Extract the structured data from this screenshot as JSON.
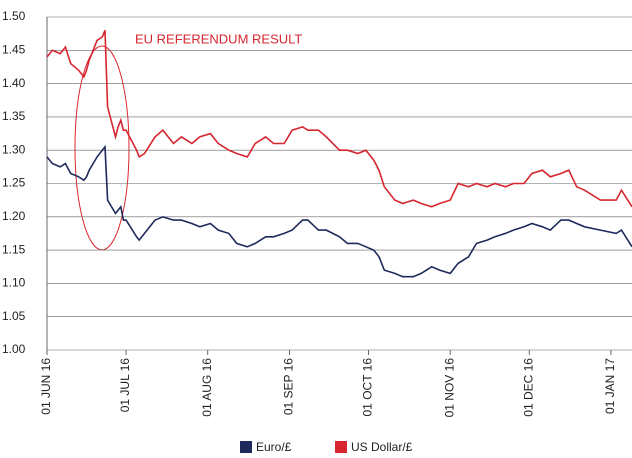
{
  "chart_data": {
    "type": "line",
    "annotation": "EU REFERENDUM RESULT",
    "x": [
      "2016-06-01",
      "2016-06-03",
      "2016-06-06",
      "2016-06-08",
      "2016-06-10",
      "2016-06-13",
      "2016-06-15",
      "2016-06-16",
      "2016-06-17",
      "2016-06-20",
      "2016-06-22",
      "2016-06-23",
      "2016-06-24",
      "2016-06-27",
      "2016-06-28",
      "2016-06-29",
      "2016-06-30",
      "2016-07-01",
      "2016-07-05",
      "2016-07-06",
      "2016-07-08",
      "2016-07-12",
      "2016-07-15",
      "2016-07-19",
      "2016-07-22",
      "2016-07-26",
      "2016-07-29",
      "2016-08-02",
      "2016-08-05",
      "2016-08-09",
      "2016-08-12",
      "2016-08-16",
      "2016-08-19",
      "2016-08-23",
      "2016-08-26",
      "2016-08-30",
      "2016-09-02",
      "2016-09-06",
      "2016-09-08",
      "2016-09-12",
      "2016-09-15",
      "2016-09-20",
      "2016-09-23",
      "2016-09-27",
      "2016-09-30",
      "2016-10-03",
      "2016-10-05",
      "2016-10-07",
      "2016-10-11",
      "2016-10-14",
      "2016-10-18",
      "2016-10-21",
      "2016-10-25",
      "2016-10-28",
      "2016-11-01",
      "2016-11-04",
      "2016-11-08",
      "2016-11-11",
      "2016-11-15",
      "2016-11-18",
      "2016-11-22",
      "2016-11-25",
      "2016-11-29",
      "2016-12-02",
      "2016-12-06",
      "2016-12-09",
      "2016-12-13",
      "2016-12-16",
      "2016-12-19",
      "2016-12-22",
      "2016-12-28",
      "2017-01-03",
      "2017-01-05",
      "2017-01-09"
    ],
    "series": [
      {
        "name": "Euro/£",
        "color": "#1f2a5c",
        "values": [
          1.29,
          1.28,
          1.275,
          1.28,
          1.265,
          1.26,
          1.255,
          1.26,
          1.27,
          1.29,
          1.3,
          1.305,
          1.225,
          1.205,
          1.21,
          1.215,
          1.195,
          1.195,
          1.17,
          1.165,
          1.175,
          1.195,
          1.2,
          1.195,
          1.195,
          1.19,
          1.185,
          1.19,
          1.18,
          1.175,
          1.16,
          1.155,
          1.16,
          1.17,
          1.17,
          1.175,
          1.18,
          1.195,
          1.195,
          1.18,
          1.18,
          1.17,
          1.16,
          1.16,
          1.155,
          1.15,
          1.14,
          1.12,
          1.115,
          1.11,
          1.11,
          1.115,
          1.125,
          1.12,
          1.115,
          1.13,
          1.14,
          1.16,
          1.165,
          1.17,
          1.175,
          1.18,
          1.185,
          1.19,
          1.185,
          1.18,
          1.195,
          1.195,
          1.19,
          1.185,
          1.18,
          1.175,
          1.18,
          1.155
        ]
      },
      {
        "name": "US Dollar/£",
        "color": "#d7262f",
        "values": [
          1.44,
          1.45,
          1.445,
          1.455,
          1.43,
          1.42,
          1.41,
          1.42,
          1.435,
          1.465,
          1.47,
          1.48,
          1.365,
          1.32,
          1.335,
          1.345,
          1.33,
          1.33,
          1.3,
          1.29,
          1.295,
          1.32,
          1.33,
          1.31,
          1.32,
          1.31,
          1.32,
          1.325,
          1.31,
          1.3,
          1.295,
          1.29,
          1.31,
          1.32,
          1.31,
          1.31,
          1.33,
          1.335,
          1.33,
          1.33,
          1.32,
          1.3,
          1.3,
          1.295,
          1.3,
          1.285,
          1.27,
          1.245,
          1.225,
          1.22,
          1.225,
          1.22,
          1.215,
          1.22,
          1.225,
          1.25,
          1.245,
          1.25,
          1.245,
          1.25,
          1.245,
          1.25,
          1.25,
          1.265,
          1.27,
          1.26,
          1.265,
          1.27,
          1.245,
          1.24,
          1.225,
          1.225,
          1.24,
          1.215
        ]
      }
    ],
    "xlim": [
      "2016-06-01",
      "2017-01-09"
    ],
    "xticks": [
      {
        "value": "2016-06-01",
        "label": "01 JUN 16"
      },
      {
        "value": "2016-07-01",
        "label": "01 JUL 16"
      },
      {
        "value": "2016-08-01",
        "label": "01 AUG 16"
      },
      {
        "value": "2016-09-01",
        "label": "01 SEP 16"
      },
      {
        "value": "2016-10-01",
        "label": "01 OCT 16"
      },
      {
        "value": "2016-11-01",
        "label": "01 NOV 16"
      },
      {
        "value": "2016-12-01",
        "label": "01 DEC 16"
      },
      {
        "value": "2017-01-01",
        "label": "01 JAN 17"
      }
    ],
    "ylim": [
      1,
      1.5
    ],
    "yticks": [
      {
        "value": 1,
        "label": "1.00"
      },
      {
        "value": 1.05,
        "label": "1.05"
      },
      {
        "value": 1.1,
        "label": "1.10"
      },
      {
        "value": 1.15,
        "label": "1.15"
      },
      {
        "value": 1.2,
        "label": "1.20"
      },
      {
        "value": 1.25,
        "label": "1.25"
      },
      {
        "value": 1.3,
        "label": "1.30"
      },
      {
        "value": 1.35,
        "label": "1.35"
      },
      {
        "value": 1.4,
        "label": "1.40"
      },
      {
        "value": 1.45,
        "label": "1.45"
      },
      {
        "value": 1.5,
        "label": "1.50"
      }
    ],
    "grid": true
  }
}
